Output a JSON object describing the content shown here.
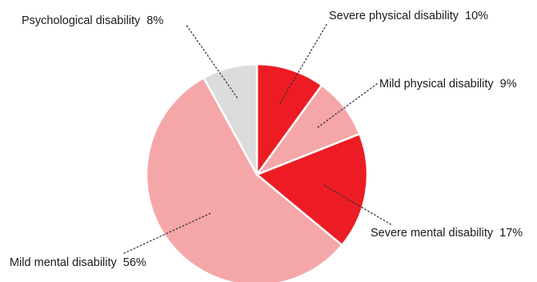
{
  "chart_data": {
    "type": "pie",
    "slices": [
      {
        "label": "Severe physical disability",
        "value": 10,
        "value_label": "10%",
        "color": "#ed1c24"
      },
      {
        "label": "Mild physical disability",
        "value": 9,
        "value_label": "9%",
        "color": "#f5a6a8"
      },
      {
        "label": "Severe mental disability",
        "value": 17,
        "value_label": "17%",
        "color": "#ed1c24"
      },
      {
        "label": "Mild mental disability",
        "value": 56,
        "value_label": "56%",
        "color": "#f5a6a8"
      },
      {
        "label": "Psychological disability",
        "value": 8,
        "value_label": "8%",
        "color": "#dcdcdd"
      }
    ],
    "start_angle": "12 o'clock",
    "direction": "clockwise",
    "legend": "none (slice labels with dotted leader lines)"
  }
}
